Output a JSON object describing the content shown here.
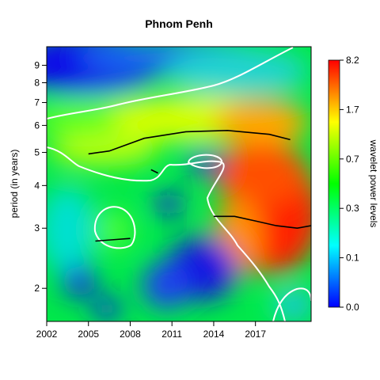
{
  "chart_data": {
    "type": "heatmap",
    "title": "Phnom Penh",
    "xlabel": "",
    "ylabel": "period (in years)",
    "x_ticks": [
      "2002",
      "2005",
      "2008",
      "2011",
      "2014",
      "2017"
    ],
    "x_range": [
      2002,
      2021
    ],
    "y_ticks": [
      {
        "label": "2",
        "value": 2
      },
      {
        "label": "3",
        "value": 3
      },
      {
        "label": "4",
        "value": 4
      },
      {
        "label": "5",
        "value": 5
      },
      {
        "label": "6",
        "value": 6
      },
      {
        "label": "7",
        "value": 7
      },
      {
        "label": "8",
        "value": 8
      },
      {
        "label": "9",
        "value": 9
      }
    ],
    "y_range": [
      1.6,
      10.2
    ],
    "y_scale": "log",
    "colorbar": {
      "label": "wavelet power levels",
      "ticks": [
        "0.0",
        "0.1",
        "0.3",
        "0.7",
        "1.7",
        "8.2"
      ],
      "colors": [
        "#0000ff",
        "#00ffff",
        "#00ff00",
        "#ffff00",
        "#ff0000"
      ]
    },
    "power_peaks": [
      {
        "year": 2004.5,
        "period": 9.0,
        "power": 0.02
      },
      {
        "year": 2008.5,
        "period": 8.0,
        "power": 0.05
      },
      {
        "year": 2012.0,
        "period": 6.2,
        "power": 2.0
      },
      {
        "year": 2016.0,
        "period": 5.8,
        "power": 2.6
      },
      {
        "year": 2019.0,
        "period": 5.6,
        "power": 2.0
      },
      {
        "year": 2017.5,
        "period": 3.6,
        "power": 8.2
      },
      {
        "year": 2018.5,
        "period": 2.6,
        "power": 8.0
      },
      {
        "year": 2013.5,
        "period": 4.5,
        "power": 0.05
      },
      {
        "year": 2011.0,
        "period": 3.3,
        "power": 0.08
      },
      {
        "year": 2012.5,
        "period": 2.2,
        "power": 0.03
      },
      {
        "year": 2004.0,
        "period": 1.9,
        "power": 0.05
      },
      {
        "year": 2006.5,
        "period": 2.8,
        "power": 0.5
      },
      {
        "year": 2020.0,
        "period": 1.7,
        "power": 0.02
      }
    ],
    "ridges": [
      {
        "years": [
          2005.0,
          2006.5,
          2009.0,
          2012.0,
          2015.0,
          2018.0,
          2019.5
        ],
        "periods": [
          4.95,
          5.05,
          5.5,
          5.75,
          5.8,
          5.65,
          5.45
        ]
      },
      {
        "years": [
          2014.0,
          2015.5,
          2017.0,
          2018.5,
          2020.0,
          2021.0
        ],
        "periods": [
          3.25,
          3.25,
          3.15,
          3.05,
          3.0,
          3.05
        ]
      },
      {
        "years": [
          2005.5,
          2007.0,
          2008.0
        ],
        "periods": [
          2.75,
          2.78,
          2.8
        ]
      },
      {
        "years": [
          2009.5,
          2010.0
        ],
        "periods": [
          4.45,
          4.35
        ]
      }
    ]
  }
}
